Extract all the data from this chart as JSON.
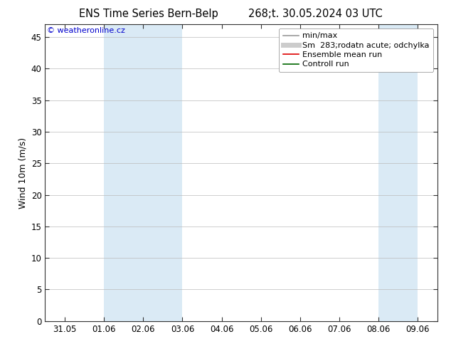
{
  "title_left": "ENS Time Series Bern-Belp",
  "title_right": "268;t. 30.05.2024 03 UTC",
  "ylabel": "Wind 10m (m/s)",
  "ylim": [
    0,
    47
  ],
  "yticks": [
    0,
    5,
    10,
    15,
    20,
    25,
    30,
    35,
    40,
    45
  ],
  "xtick_labels": [
    "31.05",
    "01.06",
    "02.06",
    "03.06",
    "04.06",
    "05.06",
    "06.06",
    "07.06",
    "08.06",
    "09.06"
  ],
  "xtick_positions": [
    0,
    1,
    2,
    3,
    4,
    5,
    6,
    7,
    8,
    9
  ],
  "xlim": [
    -0.5,
    9.5
  ],
  "shaded_bands": [
    {
      "xmin": 1.0,
      "xmax": 3.0
    },
    {
      "xmin": 8.0,
      "xmax": 9.0
    }
  ],
  "shade_color": "#daeaf5",
  "background_color": "#ffffff",
  "copyright_text": "© weatheronline.cz",
  "copyright_color": "#0000cc",
  "legend_entries": [
    {
      "label": "min/max",
      "color": "#999999",
      "lw": 1.2,
      "ls": "-"
    },
    {
      "label": "Sm  283;rodatn acute; odchylka",
      "color": "#cccccc",
      "lw": 5,
      "ls": "-"
    },
    {
      "label": "Ensemble mean run",
      "color": "#dd0000",
      "lw": 1.2,
      "ls": "-"
    },
    {
      "label": "Controll run",
      "color": "#006600",
      "lw": 1.2,
      "ls": "-"
    }
  ],
  "grid_color": "#bbbbbb",
  "title_fontsize": 10.5,
  "ylabel_fontsize": 9,
  "tick_fontsize": 8.5,
  "legend_fontsize": 8,
  "copyright_fontsize": 8
}
